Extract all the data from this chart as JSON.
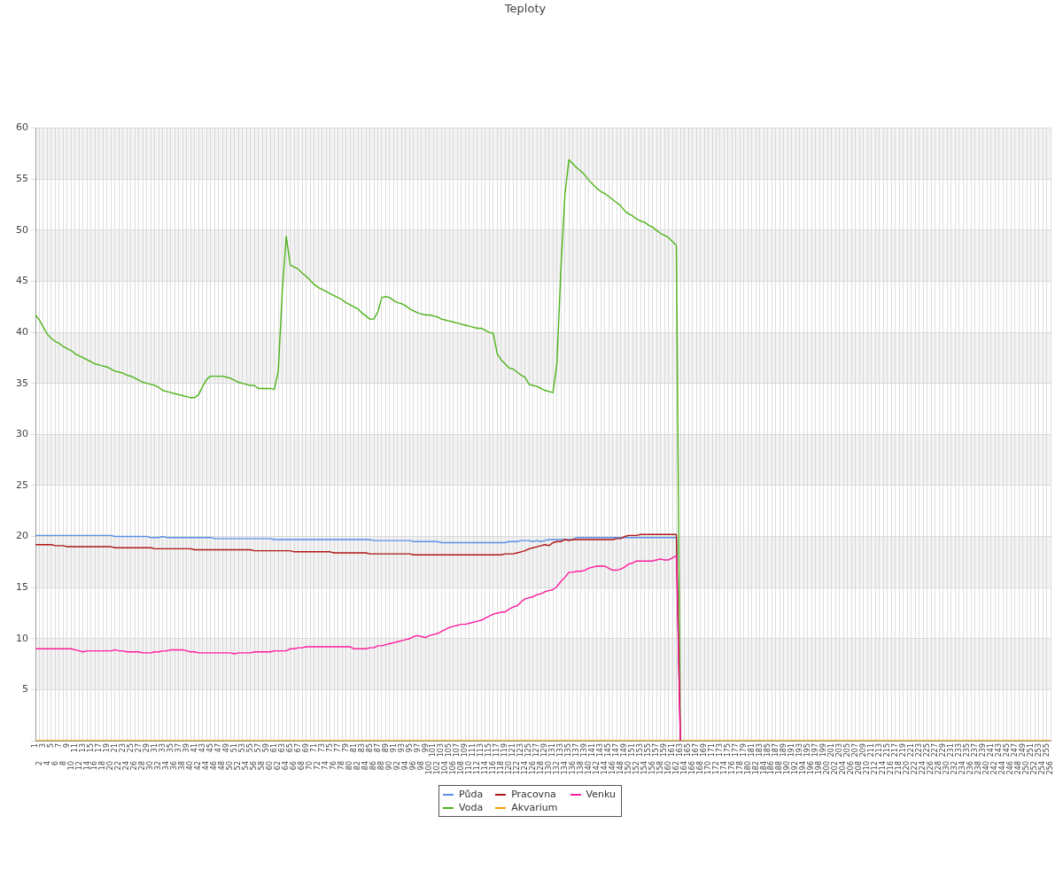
{
  "chart_data": {
    "type": "line",
    "title": "Teploty",
    "categories": [
      "1",
      "2",
      "3",
      "4",
      "5",
      "6",
      "7",
      "8",
      "9",
      "10",
      "11",
      "12",
      "13",
      "14",
      "15",
      "16",
      "17",
      "18",
      "19",
      "20",
      "21",
      "22",
      "23",
      "24",
      "25",
      "26",
      "27",
      "28",
      "29",
      "30",
      "31",
      "32",
      "33",
      "34",
      "35",
      "36",
      "37",
      "38",
      "39",
      "40",
      "41",
      "42",
      "43",
      "44",
      "45",
      "46",
      "47",
      "48",
      "49",
      "50",
      "51",
      "52",
      "53",
      "54",
      "55",
      "56",
      "57",
      "58",
      "59",
      "60",
      "61",
      "62",
      "63",
      "64",
      "65",
      "66",
      "67",
      "68",
      "69",
      "70",
      "71",
      "72",
      "73",
      "74",
      "75",
      "76",
      "77",
      "78",
      "79",
      "80",
      "81",
      "82",
      "83",
      "84",
      "85",
      "86",
      "87",
      "88",
      "89",
      "90",
      "91",
      "92",
      "93",
      "94",
      "95",
      "96",
      "97",
      "98",
      "99",
      "100",
      "101",
      "102",
      "103",
      "104",
      "105",
      "106",
      "107",
      "108",
      "109",
      "110",
      "111",
      "112",
      "113",
      "114",
      "115",
      "116",
      "117",
      "118",
      "119",
      "120",
      "121",
      "122",
      "123",
      "124",
      "125",
      "126",
      "127",
      "128",
      "129",
      "130",
      "131",
      "132",
      "133",
      "134",
      "135",
      "136",
      "137",
      "138",
      "139",
      "140",
      "141",
      "142",
      "143",
      "144",
      "145",
      "146",
      "147",
      "148",
      "149",
      "150",
      "151",
      "152",
      "153",
      "154",
      "155",
      "156",
      "157",
      "158",
      "159",
      "160",
      "161",
      "162",
      "163",
      "164",
      "165",
      "166",
      "167",
      "168",
      "169",
      "170",
      "171",
      "172",
      "173",
      "174",
      "175",
      "176",
      "177",
      "178",
      "179",
      "180",
      "181",
      "182",
      "183",
      "184",
      "185",
      "186",
      "187",
      "188",
      "189",
      "190",
      "191",
      "192",
      "193",
      "194",
      "195",
      "196",
      "197",
      "198",
      "199",
      "200",
      "201",
      "202",
      "203",
      "204",
      "205",
      "206",
      "207",
      "208",
      "209",
      "210",
      "211",
      "212",
      "213",
      "214",
      "215",
      "216",
      "217",
      "218",
      "219",
      "220",
      "221",
      "222",
      "223",
      "224",
      "225",
      "226",
      "227",
      "228",
      "229",
      "230",
      "231",
      "232",
      "233",
      "234",
      "235",
      "236",
      "237",
      "238",
      "239",
      "240",
      "241",
      "242",
      "243",
      "244",
      "245",
      "246",
      "247",
      "248",
      "249",
      "250",
      "251",
      "252",
      "253",
      "254",
      "255",
      "256"
    ],
    "series": [
      {
        "name": "Půda",
        "color": "#5b8fe8",
        "values": [
          20.1,
          20.1,
          20.1,
          20.1,
          20.1,
          20.1,
          20.1,
          20.1,
          20.1,
          20.1,
          20.1,
          20.1,
          20.1,
          20.1,
          20.1,
          20.1,
          20.1,
          20.1,
          20.1,
          20.1,
          20.0,
          20.0,
          20.0,
          20.0,
          20.0,
          20.0,
          20.0,
          20.0,
          20.0,
          19.9,
          19.9,
          19.9,
          20.0,
          19.9,
          19.9,
          19.9,
          19.9,
          19.9,
          19.9,
          19.9,
          19.9,
          19.9,
          19.9,
          19.9,
          19.9,
          19.8,
          19.8,
          19.8,
          19.8,
          19.8,
          19.8,
          19.8,
          19.8,
          19.8,
          19.8,
          19.8,
          19.8,
          19.8,
          19.8,
          19.8,
          19.7,
          19.7,
          19.7,
          19.7,
          19.7,
          19.7,
          19.7,
          19.7,
          19.7,
          19.7,
          19.7,
          19.7,
          19.7,
          19.7,
          19.7,
          19.7,
          19.7,
          19.7,
          19.7,
          19.7,
          19.7,
          19.7,
          19.7,
          19.7,
          19.7,
          19.6,
          19.6,
          19.6,
          19.6,
          19.6,
          19.6,
          19.6,
          19.6,
          19.6,
          19.6,
          19.5,
          19.5,
          19.5,
          19.5,
          19.5,
          19.5,
          19.5,
          19.4,
          19.4,
          19.4,
          19.4,
          19.4,
          19.4,
          19.4,
          19.4,
          19.4,
          19.4,
          19.4,
          19.4,
          19.4,
          19.4,
          19.4,
          19.4,
          19.4,
          19.5,
          19.5,
          19.5,
          19.6,
          19.6,
          19.6,
          19.5,
          19.6,
          19.5,
          19.6,
          19.7,
          19.7,
          19.7,
          19.7,
          19.7,
          19.7,
          19.7,
          19.9,
          19.9,
          19.9,
          19.9,
          19.9,
          19.9,
          19.9,
          19.9,
          19.9,
          19.9,
          19.9,
          19.9,
          19.9,
          19.9,
          19.9,
          19.9,
          19.9,
          19.9,
          19.9,
          19.9,
          19.9,
          19.9,
          19.9,
          19.9,
          19.9,
          19.9,
          0,
          null,
          null,
          null,
          null,
          null,
          null,
          null,
          null,
          null,
          null,
          null,
          null,
          null,
          null,
          null,
          null,
          null,
          null,
          null,
          null,
          null,
          null,
          null,
          null,
          null,
          null,
          null,
          null,
          null,
          null,
          null,
          null,
          null,
          null,
          null,
          null,
          null,
          null,
          null,
          null,
          null,
          null,
          null,
          null,
          null,
          null,
          null,
          null,
          null,
          null,
          null,
          null,
          null,
          null,
          null,
          null,
          null,
          null,
          null,
          null,
          null,
          null,
          null,
          null,
          null,
          null,
          null,
          null,
          null,
          null,
          null,
          null,
          null,
          null,
          null,
          null,
          null,
          null,
          null,
          null,
          null,
          null,
          null,
          null,
          null,
          null,
          null,
          null,
          null,
          null,
          null,
          null,
          null
        ]
      },
      {
        "name": "Voda",
        "color": "#4cb319",
        "values": [
          41.7,
          41.2,
          40.5,
          39.8,
          39.4,
          39.1,
          38.9,
          38.6,
          38.4,
          38.2,
          37.9,
          37.7,
          37.5,
          37.3,
          37.1,
          36.9,
          36.8,
          36.7,
          36.6,
          36.4,
          36.2,
          36.1,
          36.0,
          35.8,
          35.7,
          35.5,
          35.3,
          35.1,
          35.0,
          34.9,
          34.8,
          34.6,
          34.3,
          34.2,
          34.1,
          34.0,
          33.9,
          33.8,
          33.7,
          33.6,
          33.6,
          33.9,
          34.7,
          35.4,
          35.7,
          35.7,
          35.7,
          35.7,
          35.6,
          35.5,
          35.3,
          35.1,
          35.0,
          34.9,
          34.8,
          34.8,
          34.5,
          34.5,
          34.5,
          34.5,
          34.4,
          36.2,
          44.0,
          49.4,
          46.6,
          46.4,
          46.2,
          45.8,
          45.5,
          45.1,
          44.7,
          44.4,
          44.2,
          44.0,
          43.8,
          43.6,
          43.4,
          43.2,
          42.9,
          42.7,
          42.5,
          42.3,
          41.9,
          41.6,
          41.3,
          41.3,
          42.0,
          43.4,
          43.5,
          43.4,
          43.1,
          42.9,
          42.8,
          42.6,
          42.3,
          42.1,
          41.9,
          41.8,
          41.7,
          41.7,
          41.6,
          41.5,
          41.3,
          41.2,
          41.1,
          41.0,
          40.9,
          40.8,
          40.7,
          40.6,
          40.5,
          40.4,
          40.4,
          40.2,
          40.0,
          39.9,
          37.9,
          37.3,
          36.9,
          36.5,
          36.4,
          36.1,
          35.8,
          35.6,
          34.9,
          34.8,
          34.7,
          34.5,
          34.3,
          34.2,
          34.1,
          37.0,
          46.3,
          53.5,
          56.9,
          56.5,
          56.1,
          55.8,
          55.4,
          54.9,
          54.5,
          54.1,
          53.8,
          53.6,
          53.3,
          53.0,
          52.7,
          52.4,
          51.9,
          51.6,
          51.4,
          51.1,
          50.9,
          50.8,
          50.5,
          50.3,
          50.0,
          49.7,
          49.5,
          49.3,
          48.9,
          48.5,
          0,
          null,
          null,
          null,
          null,
          null,
          null,
          null,
          null,
          null,
          null,
          null,
          null,
          null,
          null,
          null,
          null,
          null,
          null,
          null,
          null,
          null,
          null,
          null,
          null,
          null,
          null,
          null,
          null,
          null,
          null,
          null,
          null,
          null,
          null,
          null,
          null,
          null,
          null,
          null,
          null,
          null,
          null,
          null,
          null,
          null,
          null,
          null,
          null,
          null,
          null,
          null,
          null,
          null,
          null,
          null,
          null,
          null,
          null,
          null,
          null,
          null,
          null,
          null,
          null,
          null,
          null,
          null,
          null,
          null,
          null,
          null,
          null,
          null,
          null,
          null,
          null,
          null,
          null,
          null,
          null,
          null,
          null,
          null,
          null,
          null,
          null,
          null,
          null,
          null,
          null,
          null,
          null,
          null
        ]
      },
      {
        "name": "Pracovna",
        "color": "#b01515",
        "values": [
          19.2,
          19.2,
          19.2,
          19.2,
          19.2,
          19.1,
          19.1,
          19.1,
          19.0,
          19.0,
          19.0,
          19.0,
          19.0,
          19.0,
          19.0,
          19.0,
          19.0,
          19.0,
          19.0,
          19.0,
          18.9,
          18.9,
          18.9,
          18.9,
          18.9,
          18.9,
          18.9,
          18.9,
          18.9,
          18.9,
          18.8,
          18.8,
          18.8,
          18.8,
          18.8,
          18.8,
          18.8,
          18.8,
          18.8,
          18.8,
          18.7,
          18.7,
          18.7,
          18.7,
          18.7,
          18.7,
          18.7,
          18.7,
          18.7,
          18.7,
          18.7,
          18.7,
          18.7,
          18.7,
          18.7,
          18.6,
          18.6,
          18.6,
          18.6,
          18.6,
          18.6,
          18.6,
          18.6,
          18.6,
          18.6,
          18.5,
          18.5,
          18.5,
          18.5,
          18.5,
          18.5,
          18.5,
          18.5,
          18.5,
          18.5,
          18.4,
          18.4,
          18.4,
          18.4,
          18.4,
          18.4,
          18.4,
          18.4,
          18.4,
          18.3,
          18.3,
          18.3,
          18.3,
          18.3,
          18.3,
          18.3,
          18.3,
          18.3,
          18.3,
          18.3,
          18.2,
          18.2,
          18.2,
          18.2,
          18.2,
          18.2,
          18.2,
          18.2,
          18.2,
          18.2,
          18.2,
          18.2,
          18.2,
          18.2,
          18.2,
          18.2,
          18.2,
          18.2,
          18.2,
          18.2,
          18.2,
          18.2,
          18.2,
          18.3,
          18.3,
          18.3,
          18.4,
          18.5,
          18.6,
          18.8,
          18.9,
          19.0,
          19.1,
          19.2,
          19.1,
          19.4,
          19.5,
          19.5,
          19.7,
          19.6,
          19.7,
          19.7,
          19.7,
          19.7,
          19.7,
          19.7,
          19.7,
          19.7,
          19.7,
          19.7,
          19.7,
          19.8,
          19.8,
          20.0,
          20.1,
          20.1,
          20.1,
          20.2,
          20.2,
          20.2,
          20.2,
          20.2,
          20.2,
          20.2,
          20.2,
          20.2,
          20.2,
          0,
          null,
          null,
          null,
          null,
          null,
          null,
          null,
          null,
          null,
          null,
          null,
          null,
          null,
          null,
          null,
          null,
          null,
          null,
          null,
          null,
          null,
          null,
          null,
          null,
          null,
          null,
          null,
          null,
          null,
          null,
          null,
          null,
          null,
          null,
          null,
          null,
          null,
          null,
          null,
          null,
          null,
          null,
          null,
          null,
          null,
          null,
          null,
          null,
          null,
          null,
          null,
          null,
          null,
          null,
          null,
          null,
          null,
          null,
          null,
          null,
          null,
          null,
          null,
          null,
          null,
          null,
          null,
          null,
          null,
          null,
          null,
          null,
          null,
          null,
          null,
          null,
          null,
          null,
          null,
          null,
          null,
          null,
          null,
          null,
          null,
          null,
          null,
          null,
          null,
          null,
          null,
          null,
          null
        ]
      },
      {
        "name": "Akvarium",
        "color": "#f5a000",
        "values": [
          0,
          0,
          0,
          0,
          0,
          0,
          0,
          0,
          0,
          0,
          0,
          0,
          0,
          0,
          0,
          0,
          0,
          0,
          0,
          0,
          0,
          0,
          0,
          0,
          0,
          0,
          0,
          0,
          0,
          0,
          0,
          0,
          0,
          0,
          0,
          0,
          0,
          0,
          0,
          0,
          0,
          0,
          0,
          0,
          0,
          0,
          0,
          0,
          0,
          0,
          0,
          0,
          0,
          0,
          0,
          0,
          0,
          0,
          0,
          0,
          0,
          0,
          0,
          0,
          0,
          0,
          0,
          0,
          0,
          0,
          0,
          0,
          0,
          0,
          0,
          0,
          0,
          0,
          0,
          0,
          0,
          0,
          0,
          0,
          0,
          0,
          0,
          0,
          0,
          0,
          0,
          0,
          0,
          0,
          0,
          0,
          0,
          0,
          0,
          0,
          0,
          0,
          0,
          0,
          0,
          0,
          0,
          0,
          0,
          0,
          0,
          0,
          0,
          0,
          0,
          0,
          0,
          0,
          0,
          0,
          0,
          0,
          0,
          0,
          0,
          0,
          0,
          0,
          0,
          0,
          0,
          0,
          0,
          0,
          0,
          0,
          0,
          0,
          0,
          0,
          0,
          0,
          0,
          0,
          0,
          0,
          0,
          0,
          0,
          0,
          0,
          0,
          0,
          0,
          0,
          0,
          0,
          0,
          0,
          0,
          0,
          0,
          0,
          0,
          0,
          0,
          0,
          0,
          0,
          0,
          0,
          0,
          0,
          0,
          0,
          0,
          0,
          0,
          0,
          0,
          0,
          0,
          0,
          0,
          0,
          0,
          0,
          0,
          0,
          0,
          0,
          0,
          0,
          0,
          0,
          0,
          0,
          0,
          0,
          0,
          0,
          0,
          0,
          0,
          0,
          0,
          0,
          0,
          0,
          0,
          0,
          0,
          0,
          0,
          0,
          0,
          0,
          0,
          0,
          0,
          0,
          0,
          0,
          0,
          0,
          0,
          0,
          0,
          0,
          0,
          0,
          0,
          0,
          0,
          0,
          0,
          0,
          0,
          0,
          0,
          0,
          0,
          0,
          0,
          0,
          0,
          0,
          0,
          0,
          0,
          0,
          0,
          0,
          0,
          0,
          0
        ]
      },
      {
        "name": "Venku",
        "color": "#ff1aa0",
        "values": [
          9.0,
          9.0,
          9.0,
          9.0,
          9.0,
          9.0,
          9.0,
          9.0,
          9.0,
          9.0,
          8.9,
          8.8,
          8.7,
          8.8,
          8.8,
          8.8,
          8.8,
          8.8,
          8.8,
          8.8,
          8.9,
          8.8,
          8.8,
          8.7,
          8.7,
          8.7,
          8.7,
          8.6,
          8.6,
          8.6,
          8.7,
          8.7,
          8.8,
          8.8,
          8.9,
          8.9,
          8.9,
          8.9,
          8.8,
          8.7,
          8.7,
          8.6,
          8.6,
          8.6,
          8.6,
          8.6,
          8.6,
          8.6,
          8.6,
          8.6,
          8.5,
          8.6,
          8.6,
          8.6,
          8.6,
          8.7,
          8.7,
          8.7,
          8.7,
          8.7,
          8.8,
          8.8,
          8.8,
          8.8,
          9.0,
          9.0,
          9.1,
          9.1,
          9.2,
          9.2,
          9.2,
          9.2,
          9.2,
          9.2,
          9.2,
          9.2,
          9.2,
          9.2,
          9.2,
          9.2,
          9.0,
          9.0,
          9.0,
          9.0,
          9.1,
          9.1,
          9.3,
          9.3,
          9.4,
          9.5,
          9.6,
          9.7,
          9.8,
          9.9,
          10.0,
          10.2,
          10.3,
          10.2,
          10.1,
          10.3,
          10.4,
          10.5,
          10.7,
          10.9,
          11.1,
          11.2,
          11.3,
          11.4,
          11.4,
          11.5,
          11.6,
          11.7,
          11.8,
          12.0,
          12.2,
          12.4,
          12.5,
          12.6,
          12.6,
          12.9,
          13.1,
          13.2,
          13.6,
          13.9,
          14.0,
          14.1,
          14.3,
          14.4,
          14.6,
          14.7,
          14.8,
          15.1,
          15.6,
          16.0,
          16.5,
          16.5,
          16.6,
          16.6,
          16.7,
          16.9,
          17.0,
          17.1,
          17.1,
          17.1,
          16.9,
          16.7,
          16.7,
          16.8,
          17.0,
          17.3,
          17.4,
          17.6,
          17.6,
          17.6,
          17.6,
          17.6,
          17.7,
          17.8,
          17.7,
          17.7,
          17.9,
          18.1,
          0,
          null,
          null,
          null,
          null,
          null,
          null,
          null,
          null,
          null,
          null,
          null,
          null,
          null,
          null,
          null,
          null,
          null,
          null,
          null,
          null,
          null,
          null,
          null,
          null,
          null,
          null,
          null,
          null,
          null,
          null,
          null,
          null,
          null,
          null,
          null,
          null,
          null,
          null,
          null,
          null,
          null,
          null,
          null,
          null,
          null,
          null,
          null,
          null,
          null,
          null,
          null,
          null,
          null,
          null,
          null,
          null,
          null,
          null,
          null,
          null,
          null,
          null,
          null,
          null,
          null,
          null,
          null,
          null,
          null,
          null,
          null,
          null,
          null,
          null,
          null,
          null,
          null,
          null,
          null,
          null,
          null,
          null,
          null,
          null,
          null,
          null,
          null,
          null,
          null,
          null,
          null,
          null,
          null
        ]
      }
    ],
    "ylim": [
      0,
      60
    ],
    "yticks": [
      {
        "value": 0,
        "label": null
      },
      5,
      10,
      15,
      20,
      25,
      30,
      35,
      40,
      45,
      50,
      55,
      60
    ],
    "grid": true,
    "legend": "bottom",
    "marker": "none",
    "line_style": "solid"
  }
}
